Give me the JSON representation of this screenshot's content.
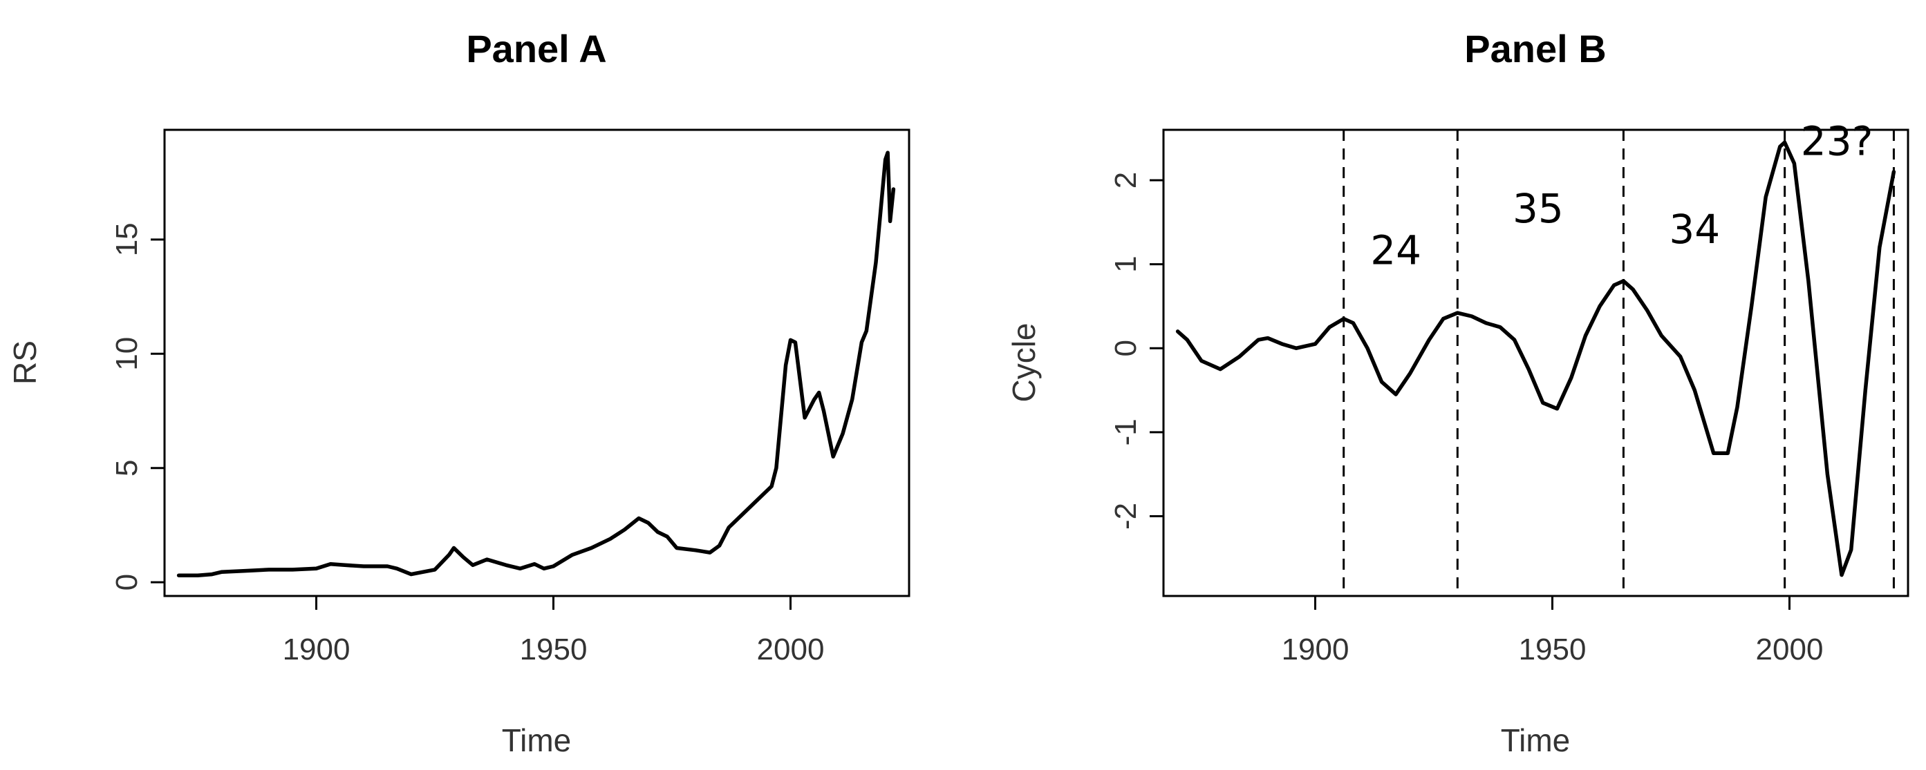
{
  "chart_data": [
    {
      "type": "line",
      "title": "Panel A",
      "xlabel": "Time",
      "ylabel": "RS",
      "xlim": [
        1868,
        2025
      ],
      "ylim": [
        -0.6,
        19.8
      ],
      "xticks": [
        1900,
        1950,
        2000
      ],
      "yticks": [
        0,
        5,
        10,
        15
      ],
      "grid": false,
      "series": [
        {
          "x": [
            1871,
            1875,
            1878,
            1880,
            1885,
            1890,
            1895,
            1900,
            1903,
            1906,
            1910,
            1915,
            1917,
            1920,
            1925,
            1928,
            1929,
            1931,
            1933,
            1936,
            1940,
            1943,
            1946,
            1948,
            1950,
            1954,
            1958,
            1962,
            1965,
            1968,
            1970,
            1972,
            1974,
            1976,
            1980,
            1983,
            1985,
            1987,
            1990,
            1993,
            1996,
            1997,
            1999,
            2000,
            2001,
            2003,
            2005,
            2006,
            2007,
            2009,
            2011,
            2013,
            2015,
            2016,
            2018,
            2020,
            2020.5,
            2021,
            2021.7
          ],
          "values": [
            0.3,
            0.3,
            0.35,
            0.45,
            0.5,
            0.55,
            0.55,
            0.6,
            0.8,
            0.75,
            0.7,
            0.7,
            0.6,
            0.35,
            0.55,
            1.2,
            1.5,
            1.1,
            0.75,
            1.0,
            0.75,
            0.6,
            0.8,
            0.6,
            0.7,
            1.2,
            1.5,
            1.9,
            2.3,
            2.8,
            2.6,
            2.2,
            2.0,
            1.5,
            1.4,
            1.3,
            1.6,
            2.4,
            3.0,
            3.6,
            4.2,
            5.0,
            9.5,
            10.6,
            10.5,
            7.2,
            8.0,
            8.3,
            7.5,
            5.5,
            6.5,
            8.0,
            10.5,
            11.0,
            14.0,
            18.5,
            18.8,
            15.8,
            17.2
          ]
        }
      ]
    },
    {
      "type": "line",
      "title": "Panel B",
      "xlabel": "Time",
      "ylabel": "Cycle",
      "xlim": [
        1868,
        2025
      ],
      "ylim": [
        -2.95,
        2.6
      ],
      "xticks": [
        1900,
        1950,
        2000
      ],
      "yticks": [
        -2,
        -1,
        0,
        1,
        2
      ],
      "grid": false,
      "series": [
        {
          "x": [
            1871,
            1873,
            1876,
            1880,
            1884,
            1888,
            1890,
            1893,
            1896,
            1900,
            1903,
            1906,
            1908,
            1911,
            1914,
            1917,
            1920,
            1924,
            1927,
            1930,
            1933,
            1936,
            1939,
            1942,
            1945,
            1948,
            1951,
            1954,
            1957,
            1960,
            1963,
            1965,
            1967,
            1970,
            1973,
            1977,
            1980,
            1984,
            1987,
            1989,
            1992,
            1995,
            1998,
            1999,
            2001,
            2004,
            2008,
            2011,
            2013,
            2016,
            2019,
            2022
          ],
          "values": [
            0.2,
            0.1,
            -0.15,
            -0.25,
            -0.1,
            0.1,
            0.12,
            0.05,
            0.0,
            0.05,
            0.25,
            0.35,
            0.3,
            0.0,
            -0.4,
            -0.55,
            -0.3,
            0.1,
            0.35,
            0.42,
            0.38,
            0.3,
            0.25,
            0.1,
            -0.25,
            -0.65,
            -0.72,
            -0.35,
            0.15,
            0.5,
            0.75,
            0.8,
            0.7,
            0.45,
            0.15,
            -0.1,
            -0.5,
            -1.25,
            -1.25,
            -0.7,
            0.5,
            1.8,
            2.4,
            2.45,
            2.2,
            0.8,
            -1.5,
            -2.7,
            -2.4,
            -0.5,
            1.2,
            2.1
          ]
        }
      ],
      "vlines": [
        1906,
        1930,
        1965,
        1999,
        2022
      ],
      "annotations": [
        {
          "text": "24",
          "x": 1917,
          "y": 1.0
        },
        {
          "text": "35",
          "x": 1947,
          "y": 1.5
        },
        {
          "text": "34",
          "x": 1980,
          "y": 1.25
        },
        {
          "text": "23?",
          "x": 2010,
          "y": 2.3
        }
      ]
    }
  ]
}
